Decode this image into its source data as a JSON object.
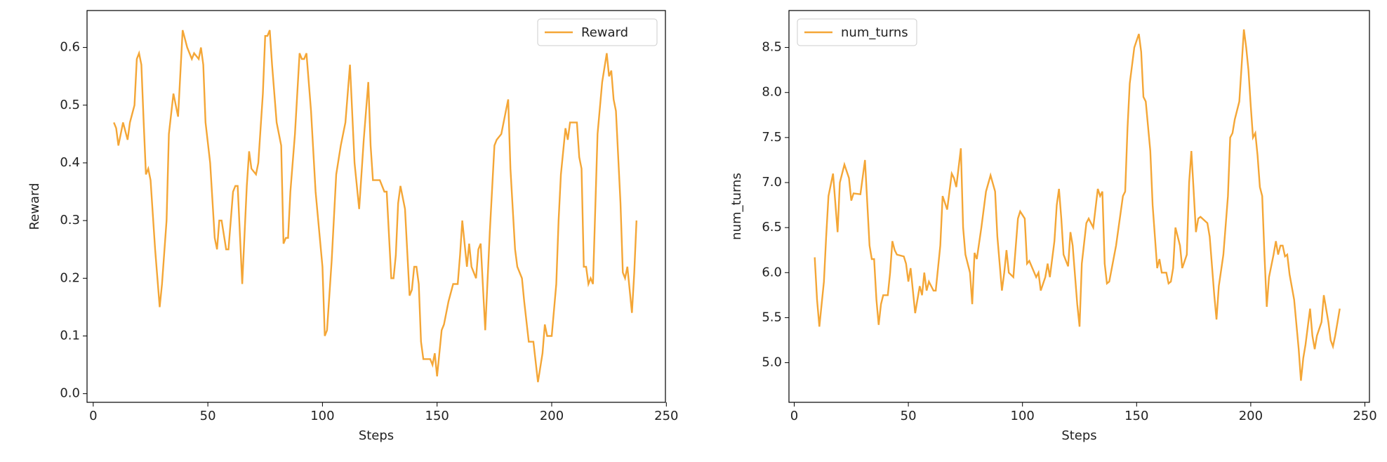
{
  "chart_data": [
    {
      "type": "line",
      "xlabel": "Steps",
      "ylabel": "Reward",
      "legend": "upper right",
      "xlim": [
        -2.7,
        249.6
      ],
      "ylim": [
        -0.015,
        0.664
      ],
      "xticks": [
        0,
        50,
        100,
        150,
        200,
        250
      ],
      "yticks": [
        {
          "value": 0,
          "label": "0.0"
        },
        0.1,
        0.2,
        0.3,
        0.4,
        0.5,
        0.6
      ],
      "x": [
        9,
        10,
        11,
        13,
        15,
        16,
        18,
        19,
        20,
        21,
        22,
        23,
        24,
        25,
        27,
        29,
        30,
        32,
        33,
        35,
        37,
        39,
        41,
        43,
        44,
        46,
        47,
        48,
        49,
        51,
        53,
        54,
        55,
        56,
        58,
        59,
        61,
        62,
        63,
        65,
        67,
        68,
        69,
        71,
        72,
        74,
        75,
        76,
        77,
        78,
        80,
        82,
        83,
        84,
        85,
        86,
        88,
        90,
        91,
        92,
        93,
        95,
        97,
        100,
        101,
        102,
        104,
        106,
        108,
        110,
        112,
        114,
        116,
        118,
        120,
        121,
        122,
        125,
        127,
        128,
        130,
        131,
        132,
        133,
        134,
        136,
        138,
        139,
        140,
        141,
        142,
        143,
        144,
        147,
        148,
        149,
        150,
        152,
        153,
        155,
        157,
        159,
        160,
        161,
        163,
        164,
        165,
        167,
        168,
        169,
        171,
        173,
        175,
        176,
        178,
        180,
        181,
        182,
        184,
        185,
        187,
        188,
        190,
        192,
        194,
        196,
        197,
        198,
        200,
        202,
        203,
        204,
        206,
        207,
        208,
        211,
        212,
        213,
        214,
        215,
        216,
        217,
        218,
        220,
        222,
        224,
        225,
        226,
        227,
        228,
        230,
        231,
        232,
        233,
        235,
        236,
        237
      ],
      "series": [
        {
          "name": "Reward",
          "color": "#f4a636",
          "values": [
            0.47,
            0.46,
            0.43,
            0.47,
            0.44,
            0.47,
            0.5,
            0.58,
            0.59,
            0.57,
            0.47,
            0.38,
            0.39,
            0.37,
            0.25,
            0.15,
            0.19,
            0.3,
            0.45,
            0.52,
            0.48,
            0.63,
            0.6,
            0.58,
            0.59,
            0.58,
            0.6,
            0.57,
            0.47,
            0.4,
            0.27,
            0.25,
            0.3,
            0.3,
            0.25,
            0.25,
            0.35,
            0.36,
            0.36,
            0.19,
            0.36,
            0.42,
            0.39,
            0.38,
            0.4,
            0.52,
            0.62,
            0.62,
            0.63,
            0.57,
            0.47,
            0.43,
            0.26,
            0.27,
            0.27,
            0.35,
            0.45,
            0.59,
            0.58,
            0.58,
            0.59,
            0.49,
            0.35,
            0.22,
            0.1,
            0.11,
            0.23,
            0.38,
            0.43,
            0.47,
            0.57,
            0.4,
            0.32,
            0.44,
            0.54,
            0.43,
            0.37,
            0.37,
            0.35,
            0.35,
            0.2,
            0.2,
            0.24,
            0.33,
            0.36,
            0.32,
            0.17,
            0.18,
            0.22,
            0.22,
            0.19,
            0.09,
            0.06,
            0.06,
            0.05,
            0.07,
            0.03,
            0.11,
            0.12,
            0.16,
            0.19,
            0.19,
            0.24,
            0.3,
            0.22,
            0.26,
            0.22,
            0.2,
            0.25,
            0.26,
            0.11,
            0.28,
            0.43,
            0.44,
            0.45,
            0.49,
            0.51,
            0.39,
            0.25,
            0.22,
            0.2,
            0.16,
            0.09,
            0.09,
            0.02,
            0.07,
            0.12,
            0.1,
            0.1,
            0.19,
            0.3,
            0.38,
            0.46,
            0.44,
            0.47,
            0.47,
            0.41,
            0.39,
            0.22,
            0.22,
            0.19,
            0.2,
            0.19,
            0.45,
            0.54,
            0.59,
            0.55,
            0.56,
            0.51,
            0.49,
            0.33,
            0.21,
            0.2,
            0.22,
            0.14,
            0.21,
            0.3
          ]
        }
      ]
    },
    {
      "type": "line",
      "xlabel": "Steps",
      "ylabel": "num_turns",
      "legend": "upper left",
      "xlim": [
        -2.3,
        252
      ],
      "ylim": [
        4.56,
        8.91
      ],
      "xticks": [
        0,
        50,
        100,
        150,
        200,
        250
      ],
      "yticks": [
        {
          "value": 5,
          "label": "5.0"
        },
        5.5,
        {
          "value": 6,
          "label": "6.0"
        },
        6.5,
        {
          "value": 7,
          "label": "7.0"
        },
        7.5,
        {
          "value": 8,
          "label": "8.0"
        },
        8.5
      ],
      "x": [
        9,
        10,
        11,
        13,
        14,
        15,
        17,
        19,
        20,
        22,
        24,
        25,
        26,
        29,
        31,
        33,
        34,
        35,
        36,
        37,
        38,
        39,
        41,
        42,
        43,
        44,
        45,
        48,
        49,
        50,
        51,
        53,
        55,
        56,
        57,
        58,
        59,
        61,
        62,
        64,
        65,
        67,
        69,
        70,
        71,
        73,
        74,
        75,
        77,
        78,
        79,
        80,
        82,
        84,
        86,
        88,
        89,
        91,
        92,
        93,
        94,
        96,
        98,
        99,
        101,
        102,
        103,
        106,
        107,
        108,
        110,
        111,
        112,
        114,
        115,
        116,
        117,
        118,
        120,
        121,
        122,
        124,
        125,
        126,
        128,
        129,
        131,
        133,
        134,
        135,
        136,
        137,
        138,
        141,
        144,
        145,
        146,
        147,
        149,
        151,
        152,
        153,
        154,
        156,
        157,
        159,
        160,
        161,
        163,
        164,
        165,
        166,
        167,
        169,
        170,
        172,
        173,
        174,
        175,
        176,
        177,
        178,
        181,
        182,
        184,
        185,
        186,
        188,
        190,
        191,
        192,
        193,
        195,
        196,
        197,
        198,
        199,
        200,
        201,
        202,
        203,
        204,
        205,
        206,
        207,
        208,
        210,
        211,
        212,
        213,
        214,
        215,
        216,
        217,
        219,
        221,
        222,
        223,
        224,
        226,
        227,
        228,
        229,
        231,
        232,
        234,
        235,
        236,
        237,
        238,
        239
      ],
      "series": [
        {
          "name": "num_turns",
          "color": "#f4a636",
          "values": [
            6.17,
            5.7,
            5.4,
            5.9,
            6.4,
            6.85,
            7.1,
            6.45,
            7.0,
            7.2,
            7.05,
            6.8,
            6.88,
            6.87,
            7.25,
            6.3,
            6.15,
            6.15,
            5.7,
            5.42,
            5.65,
            5.75,
            5.75,
            6.0,
            6.35,
            6.25,
            6.2,
            6.18,
            6.1,
            5.9,
            6.05,
            5.55,
            5.85,
            5.75,
            6.0,
            5.8,
            5.9,
            5.8,
            5.8,
            6.3,
            6.85,
            6.7,
            7.1,
            7.05,
            6.95,
            7.38,
            6.5,
            6.2,
            6.0,
            5.65,
            6.22,
            6.15,
            6.5,
            6.9,
            7.08,
            6.9,
            6.4,
            5.8,
            6.0,
            6.25,
            6.0,
            5.95,
            6.6,
            6.68,
            6.6,
            6.1,
            6.13,
            5.95,
            6.0,
            5.8,
            5.95,
            6.1,
            5.95,
            6.35,
            6.75,
            6.93,
            6.6,
            6.2,
            6.07,
            6.45,
            6.3,
            5.65,
            5.4,
            6.1,
            6.55,
            6.6,
            6.5,
            6.93,
            6.85,
            6.9,
            6.1,
            5.88,
            5.9,
            6.3,
            6.85,
            6.9,
            7.6,
            8.1,
            8.5,
            8.65,
            8.45,
            7.95,
            7.9,
            7.35,
            6.75,
            6.05,
            6.15,
            6.0,
            6.0,
            5.88,
            5.9,
            6.05,
            6.5,
            6.3,
            6.05,
            6.2,
            7.0,
            7.35,
            6.9,
            6.45,
            6.6,
            6.62,
            6.55,
            6.4,
            5.75,
            5.48,
            5.85,
            6.2,
            6.85,
            7.5,
            7.55,
            7.7,
            7.9,
            8.3,
            8.7,
            8.5,
            8.25,
            7.85,
            7.5,
            7.55,
            7.3,
            6.95,
            6.85,
            6.2,
            5.62,
            5.95,
            6.2,
            6.35,
            6.2,
            6.3,
            6.3,
            6.18,
            6.2,
            5.98,
            5.7,
            5.15,
            4.8,
            5.05,
            5.2,
            5.6,
            5.3,
            5.15,
            5.3,
            5.45,
            5.75,
            5.45,
            5.25,
            5.18,
            5.3,
            5.45,
            5.6
          ]
        }
      ]
    }
  ]
}
